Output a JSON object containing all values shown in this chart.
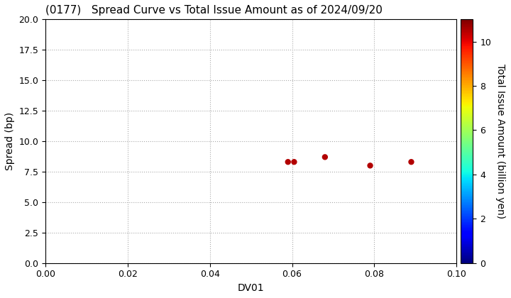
{
  "title": "(0177)   Spread Curve vs Total Issue Amount as of 2024/09/20",
  "xlabel": "DV01",
  "ylabel": "Spread (bp)",
  "xlim": [
    0.0,
    0.1
  ],
  "ylim": [
    0.0,
    20.0
  ],
  "xticks": [
    0.0,
    0.02,
    0.04,
    0.06,
    0.08,
    0.1
  ],
  "yticks": [
    0.0,
    2.5,
    5.0,
    7.5,
    10.0,
    12.5,
    15.0,
    17.5,
    20.0
  ],
  "ytick_labels": [
    "0.0",
    "2.5",
    "5.0",
    "7.5",
    "10.0",
    "12.5",
    "15.0",
    "17.5",
    "20.0"
  ],
  "colorbar_label": "Total Issue Amount (billion yen)",
  "colorbar_vmin": 0,
  "colorbar_vmax": 11,
  "colorbar_ticks": [
    0,
    2,
    4,
    6,
    8,
    10
  ],
  "scatter_x": [
    0.059,
    0.0605,
    0.068,
    0.079,
    0.089
  ],
  "scatter_y": [
    8.3,
    8.3,
    8.7,
    8.0,
    8.3
  ],
  "scatter_c": [
    10.5,
    10.5,
    10.5,
    10.5,
    10.5
  ],
  "scatter_size": 25,
  "background_color": "#ffffff",
  "grid_color": "#aaaaaa",
  "title_fontsize": 11,
  "axis_fontsize": 10,
  "tick_fontsize": 9
}
